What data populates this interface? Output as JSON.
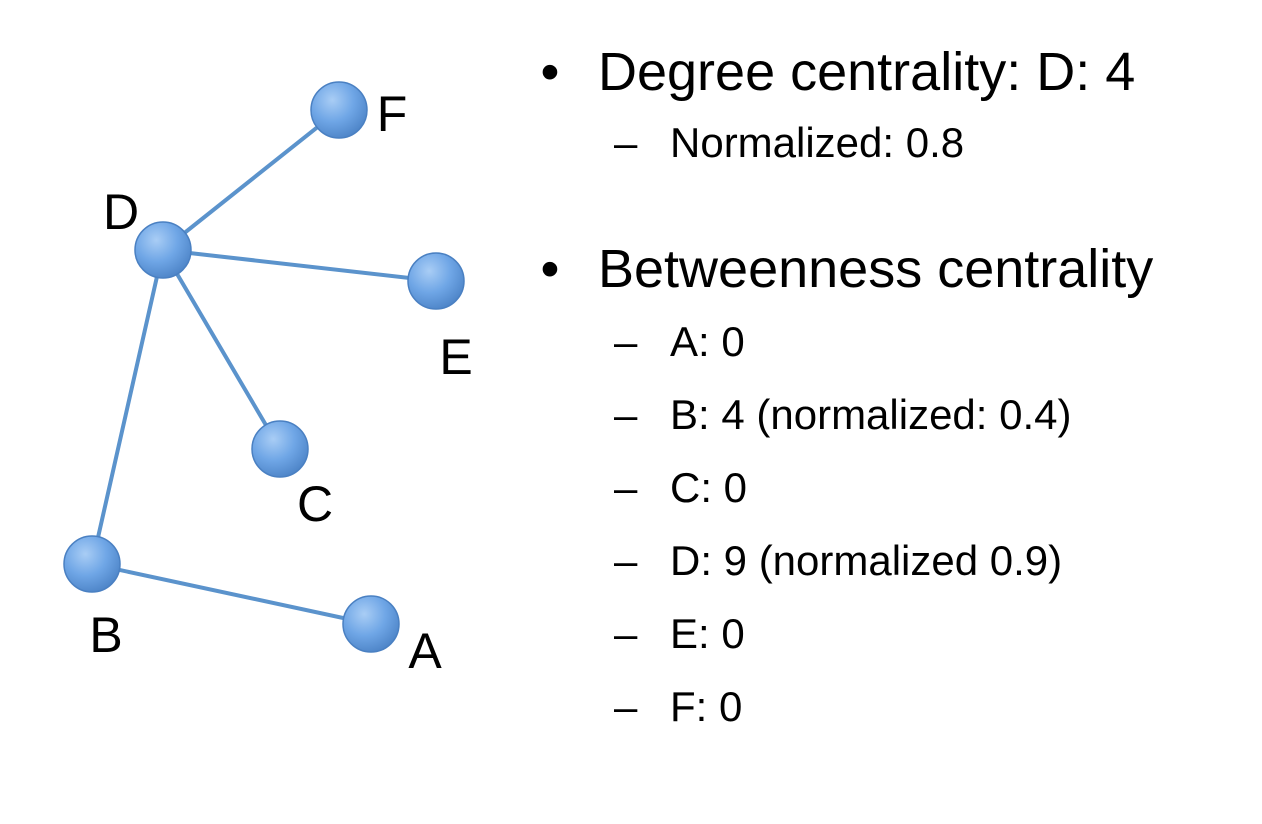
{
  "graph": {
    "node_color": "#6fa6e6",
    "edge_color": "#5b93cc",
    "nodes": [
      {
        "id": "F",
        "label": "F"
      },
      {
        "id": "D",
        "label": "D"
      },
      {
        "id": "E",
        "label": "E"
      },
      {
        "id": "C",
        "label": "C"
      },
      {
        "id": "B",
        "label": "B"
      },
      {
        "id": "A",
        "label": "A"
      }
    ],
    "edges": [
      {
        "from": "D",
        "to": "F"
      },
      {
        "from": "D",
        "to": "E"
      },
      {
        "from": "D",
        "to": "C"
      },
      {
        "from": "D",
        "to": "B"
      },
      {
        "from": "B",
        "to": "A"
      }
    ]
  },
  "degree": {
    "bullet": "•",
    "title": "Degree centrality: D: 4",
    "dash": "–",
    "items": [
      "Normalized: 0.8"
    ]
  },
  "betweenness": {
    "bullet": "•",
    "title": "Betweenness centrality",
    "dash": "–",
    "items": [
      "A: 0",
      "B: 4 (normalized: 0.4)",
      "C: 0",
      "D: 9 (normalized 0.9)",
      "E: 0",
      "F: 0"
    ]
  }
}
